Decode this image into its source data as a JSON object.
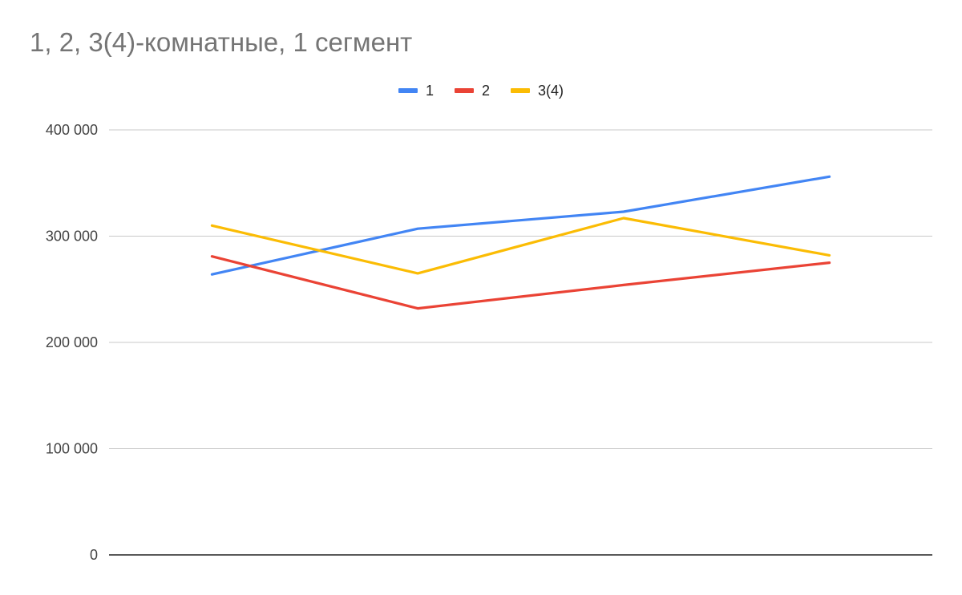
{
  "chart_data": {
    "type": "line",
    "title": "1, 2, 3(4)-комнатные, 1 сегмент",
    "xlabel": "",
    "ylabel": "",
    "x": [
      "",
      "",
      "",
      ""
    ],
    "ylim": [
      0,
      400000
    ],
    "yticks": [
      0,
      100000,
      200000,
      300000,
      400000
    ],
    "ytick_labels": [
      "0",
      "100 000",
      "200 000",
      "300 000",
      "400 000"
    ],
    "grid": true,
    "legend_position": "top",
    "series": [
      {
        "name": "1",
        "color": "#4285f4",
        "values": [
          264000,
          307000,
          323000,
          356000
        ]
      },
      {
        "name": "2",
        "color": "#ea4335",
        "values": [
          281000,
          232000,
          254000,
          275000
        ]
      },
      {
        "name": "3(4)",
        "color": "#fbbc04",
        "values": [
          310000,
          265000,
          317000,
          282000
        ]
      }
    ]
  }
}
